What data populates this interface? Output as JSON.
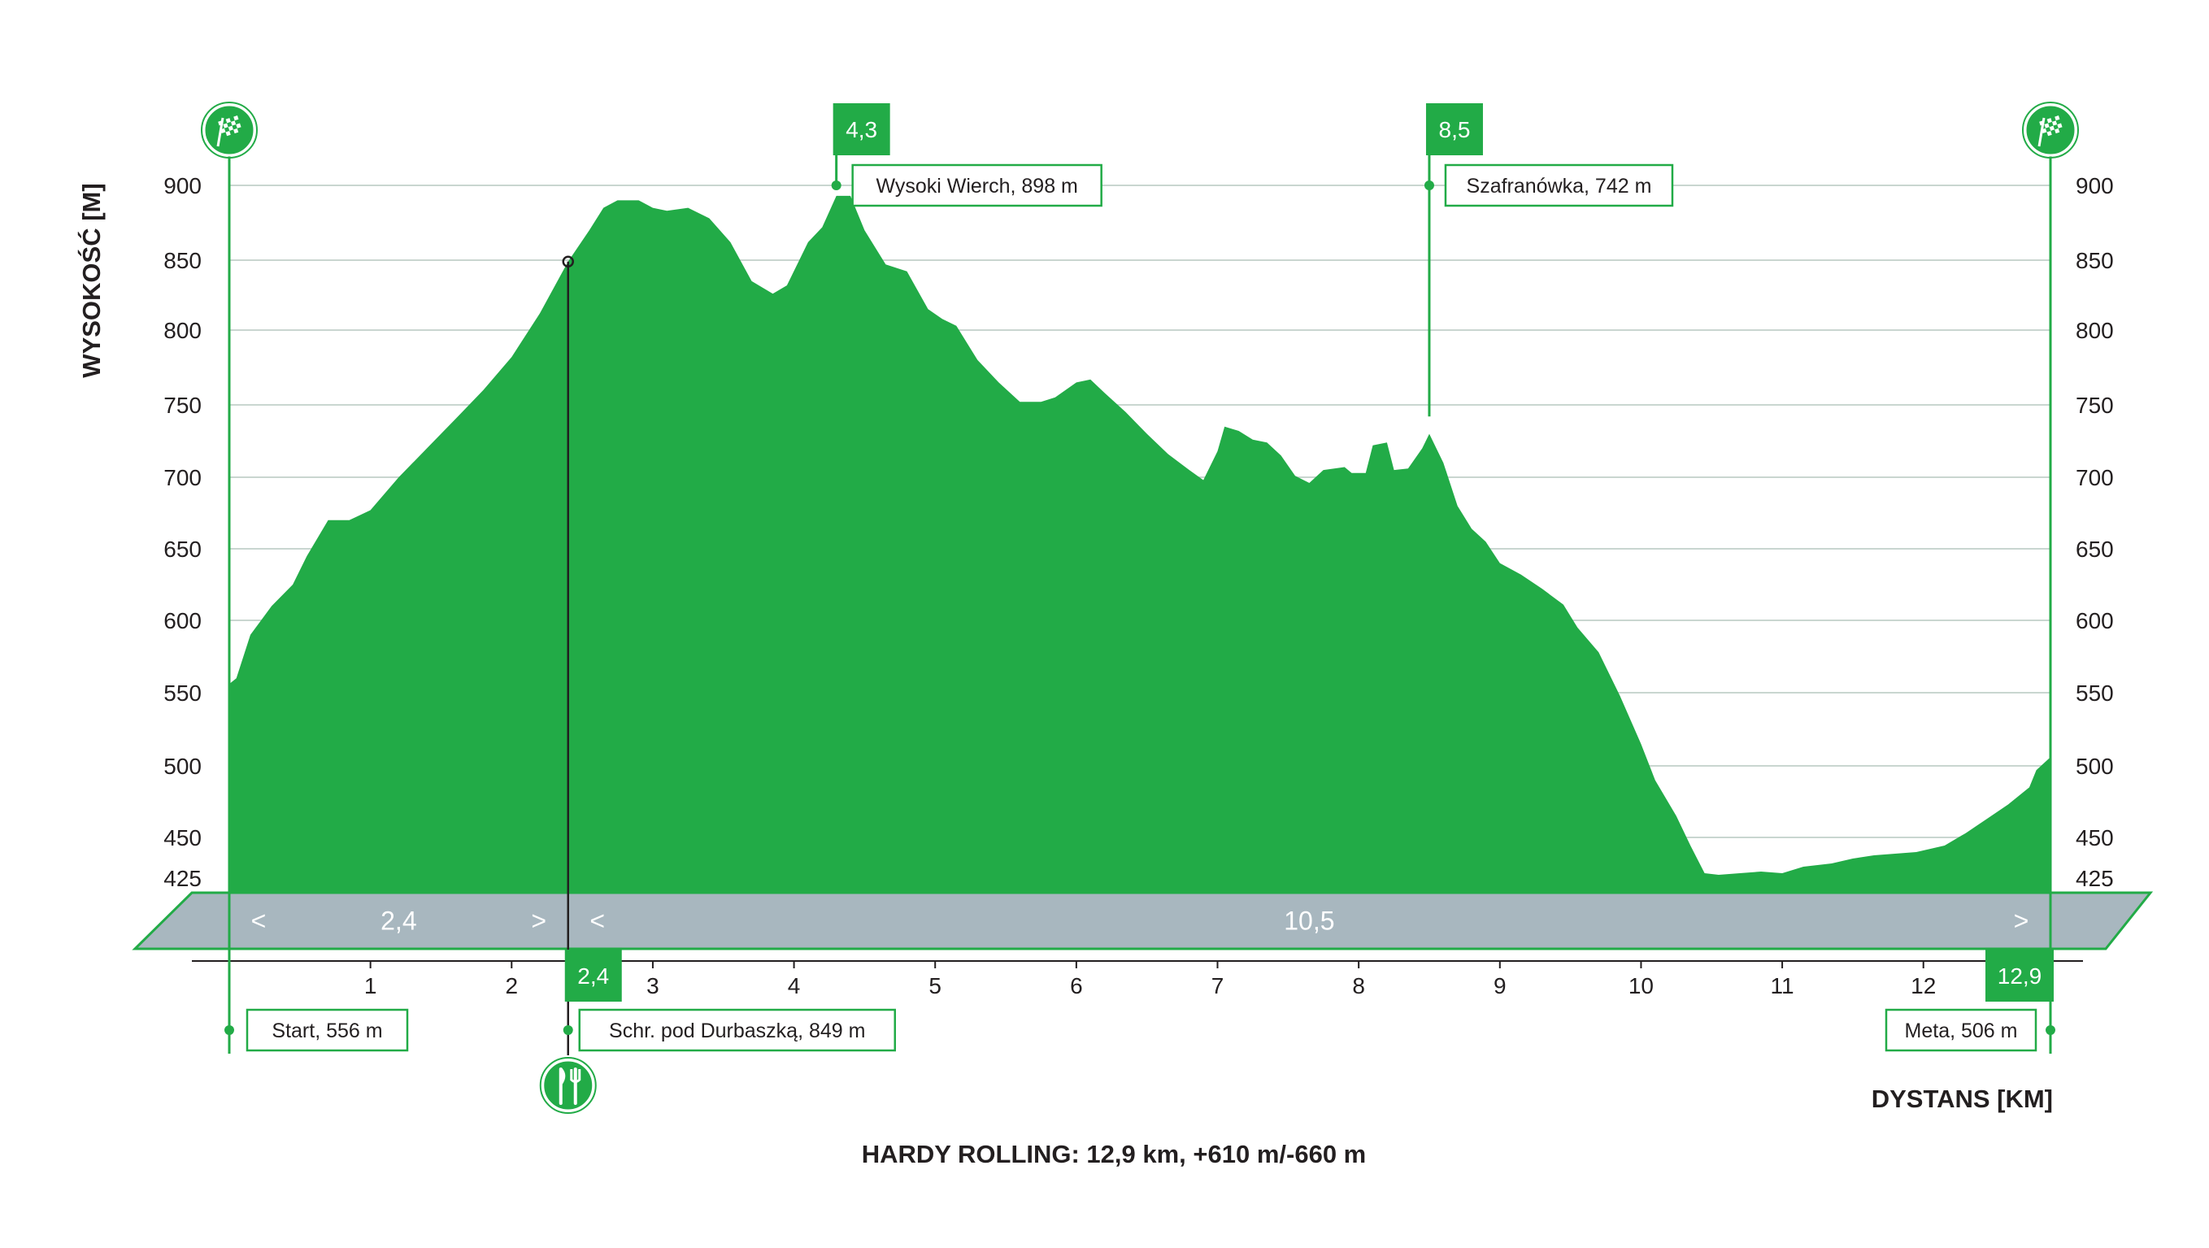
{
  "colors": {
    "fill": "#22ab47",
    "band": "#a8b7bf",
    "grid": "#c9d6d0",
    "text": "#231f20"
  },
  "chart_data": {
    "type": "area",
    "title": "HARDY ROLLING: 12,9 km, +610 m/-660 m",
    "xlabel": "DYSTANS [KM]",
    "ylabel": "WYSOKOŚĆ [M]",
    "xlim": [
      0,
      12.9
    ],
    "ylim": [
      425,
      900
    ],
    "grid": true,
    "x_ticks": [
      {
        "value": 1,
        "label": "1"
      },
      {
        "value": 2,
        "label": "2"
      },
      {
        "value": 3,
        "label": "3"
      },
      {
        "value": 4,
        "label": "4"
      },
      {
        "value": 5,
        "label": "5"
      },
      {
        "value": 6,
        "label": "6"
      },
      {
        "value": 7,
        "label": "7"
      },
      {
        "value": 8,
        "label": "8"
      },
      {
        "value": 9,
        "label": "9"
      },
      {
        "value": 10,
        "label": "10"
      },
      {
        "value": 11,
        "label": "11"
      },
      {
        "value": 12,
        "label": "12"
      }
    ],
    "y_ticks": [
      {
        "value": 900,
        "label": "900"
      },
      {
        "value": 850,
        "label": "850"
      },
      {
        "value": 800,
        "label": "800"
      },
      {
        "value": 750,
        "label": "750"
      },
      {
        "value": 700,
        "label": "700"
      },
      {
        "value": 650,
        "label": "650"
      },
      {
        "value": 600,
        "label": "600"
      },
      {
        "value": 550,
        "label": "550"
      },
      {
        "value": 500,
        "label": "500"
      },
      {
        "value": 450,
        "label": "450"
      },
      {
        "value": 425,
        "label": "425"
      }
    ],
    "profile": [
      [
        0,
        556
      ],
      [
        0.05,
        560
      ],
      [
        0.15,
        590
      ],
      [
        0.3,
        610
      ],
      [
        0.45,
        625
      ],
      [
        0.55,
        645
      ],
      [
        0.7,
        670
      ],
      [
        0.85,
        670
      ],
      [
        1.0,
        677
      ],
      [
        1.2,
        700
      ],
      [
        1.4,
        720
      ],
      [
        1.6,
        740
      ],
      [
        1.8,
        760
      ],
      [
        2.0,
        782
      ],
      [
        2.2,
        812
      ],
      [
        2.4,
        849
      ],
      [
        2.55,
        870
      ],
      [
        2.65,
        885
      ],
      [
        2.75,
        890
      ],
      [
        2.9,
        890
      ],
      [
        3.0,
        885
      ],
      [
        3.1,
        883
      ],
      [
        3.25,
        885
      ],
      [
        3.4,
        878
      ],
      [
        3.55,
        862
      ],
      [
        3.7,
        835
      ],
      [
        3.85,
        826
      ],
      [
        3.95,
        832
      ],
      [
        4.1,
        862
      ],
      [
        4.2,
        872
      ],
      [
        4.3,
        893
      ],
      [
        4.4,
        893
      ],
      [
        4.5,
        870
      ],
      [
        4.65,
        847
      ],
      [
        4.8,
        842
      ],
      [
        4.95,
        815
      ],
      [
        5.05,
        808
      ],
      [
        5.15,
        803
      ],
      [
        5.3,
        780
      ],
      [
        5.45,
        765
      ],
      [
        5.6,
        752
      ],
      [
        5.75,
        752
      ],
      [
        5.85,
        755
      ],
      [
        6.0,
        765
      ],
      [
        6.1,
        767
      ],
      [
        6.2,
        758
      ],
      [
        6.35,
        745
      ],
      [
        6.5,
        730
      ],
      [
        6.65,
        716
      ],
      [
        6.8,
        705
      ],
      [
        6.9,
        698
      ],
      [
        7.0,
        718
      ],
      [
        7.05,
        735
      ],
      [
        7.15,
        732
      ],
      [
        7.25,
        726
      ],
      [
        7.35,
        724
      ],
      [
        7.45,
        715
      ],
      [
        7.55,
        701
      ],
      [
        7.65,
        696
      ],
      [
        7.75,
        705
      ],
      [
        7.9,
        707
      ],
      [
        7.95,
        703
      ],
      [
        8.05,
        703
      ],
      [
        8.1,
        722
      ],
      [
        8.2,
        724
      ],
      [
        8.25,
        705
      ],
      [
        8.35,
        706
      ],
      [
        8.45,
        720
      ],
      [
        8.5,
        730
      ],
      [
        8.6,
        710
      ],
      [
        8.7,
        680
      ],
      [
        8.8,
        664
      ],
      [
        8.9,
        655
      ],
      [
        9.0,
        640
      ],
      [
        9.15,
        632
      ],
      [
        9.3,
        622
      ],
      [
        9.45,
        611
      ],
      [
        9.55,
        595
      ],
      [
        9.7,
        578
      ],
      [
        9.85,
        548
      ],
      [
        10.0,
        515
      ],
      [
        10.1,
        490
      ],
      [
        10.25,
        465
      ],
      [
        10.35,
        445
      ],
      [
        10.45,
        428
      ],
      [
        10.55,
        427
      ],
      [
        10.7,
        428
      ],
      [
        10.85,
        429
      ],
      [
        11.0,
        428
      ],
      [
        11.15,
        432
      ],
      [
        11.35,
        434
      ],
      [
        11.5,
        437
      ],
      [
        11.65,
        439
      ],
      [
        11.8,
        440
      ],
      [
        11.95,
        441
      ],
      [
        12.15,
        445
      ],
      [
        12.3,
        453
      ],
      [
        12.45,
        463
      ],
      [
        12.6,
        473
      ],
      [
        12.75,
        485
      ],
      [
        12.8,
        497
      ],
      [
        12.9,
        506
      ]
    ],
    "annotations": [
      {
        "label": "Start, 556 m",
        "x": 0,
        "elevation": 556,
        "side": "below",
        "icon": "finish-flag"
      },
      {
        "label": "Schr. pod Durbaszką, 849 m",
        "x": 2.4,
        "elevation": 849,
        "side": "below",
        "badge": "2,4",
        "icon": "food-stop"
      },
      {
        "label": "Wysoki Wierch, 898 m",
        "x": 4.3,
        "elevation": 898,
        "side": "above",
        "badge": "4,3"
      },
      {
        "label": "Szafranówka, 742 m",
        "x": 8.5,
        "elevation": 742,
        "side": "above",
        "badge": "8,5"
      },
      {
        "label": "Meta, 506 m",
        "x": 12.9,
        "elevation": 506,
        "side": "below",
        "badge": "12,9",
        "icon": "finish-flag"
      }
    ],
    "segments": [
      {
        "from": 0,
        "to": 2.4,
        "label": "2,4"
      },
      {
        "from": 2.4,
        "to": 12.9,
        "label": "10,5"
      }
    ]
  }
}
